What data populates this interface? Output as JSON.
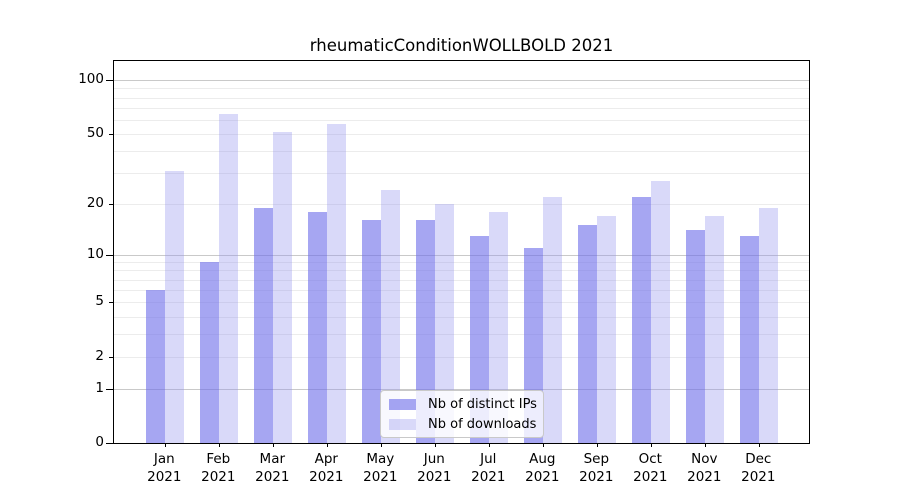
{
  "chart_data": {
    "type": "bar",
    "title": "rheumaticConditionWOLLBOLD 2021",
    "categories": [
      "Jan",
      "Feb",
      "Mar",
      "Apr",
      "May",
      "Jun",
      "Jul",
      "Aug",
      "Sep",
      "Oct",
      "Nov",
      "Dec"
    ],
    "year_label": "2021",
    "series": [
      {
        "name": "Nb of distinct IPs",
        "values": [
          6,
          9,
          19,
          18,
          16,
          16,
          13,
          11,
          15,
          22,
          14,
          13
        ],
        "fill": "rgba(112,112,234,0.62)",
        "swatch_color": "#a6a6f2"
      },
      {
        "name": "Nb of downloads",
        "values": [
          31,
          65,
          51,
          57,
          24,
          20,
          18,
          22,
          17,
          27,
          17,
          19
        ],
        "fill": "rgba(146,146,238,0.35)",
        "swatch_color": "#d9d9f9"
      }
    ],
    "y_ticks": [
      0,
      1,
      2,
      5,
      10,
      20,
      50,
      100
    ],
    "y_major_ticks": [
      1,
      10,
      100
    ],
    "y_minor_gridlines": [
      2,
      3,
      4,
      5,
      6,
      7,
      8,
      9,
      20,
      30,
      40,
      50,
      60,
      70,
      80,
      90
    ],
    "scale": "log1p",
    "ylim": [
      0,
      127
    ],
    "xlabel": "",
    "ylabel": "",
    "grid": true,
    "legend_position": "lower center",
    "colors": {
      "major_grid": "#c9c9c9",
      "minor_grid": "#ececec",
      "axis": "#000000",
      "background": "#ffffff"
    }
  }
}
